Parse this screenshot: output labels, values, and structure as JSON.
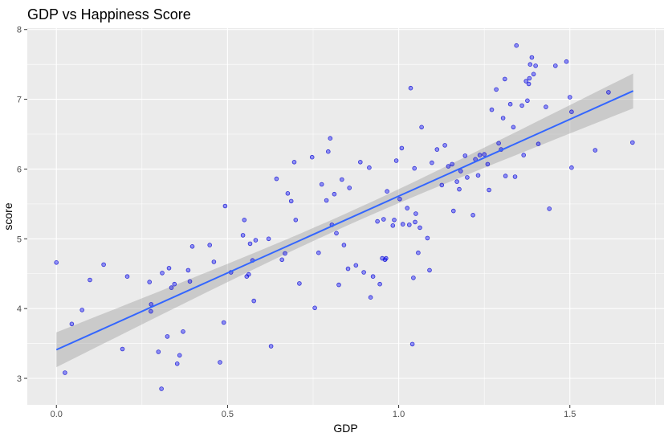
{
  "chart_data": {
    "type": "scatter",
    "title": "GDP vs Happiness Score",
    "xlabel": "GDP",
    "ylabel": "score",
    "xlim": [
      -0.085,
      1.775
    ],
    "ylim": [
      2.62,
      8.02
    ],
    "x_ticks": [
      0.0,
      0.5,
      1.0,
      1.5
    ],
    "x_tick_labels": [
      "0.0",
      "0.5",
      "1.0",
      "1.5"
    ],
    "y_ticks": [
      3,
      4,
      5,
      6,
      7,
      8
    ],
    "y_tick_labels": [
      "3",
      "4",
      "5",
      "6",
      "7",
      "8"
    ],
    "grid": true,
    "legend": "none",
    "background": "#ebebeb",
    "grid_color": "#ffffff",
    "point_color": "#0000ff",
    "point_edge_color": "#0000cc",
    "point_alpha": 0.4,
    "series": [
      {
        "points": [
          [
            0.0,
            4.66
          ],
          [
            0.025,
            3.08
          ],
          [
            0.045,
            3.78
          ],
          [
            0.075,
            3.98
          ],
          [
            0.098,
            4.41
          ],
          [
            0.138,
            4.63
          ],
          [
            0.193,
            3.42
          ],
          [
            0.207,
            4.46
          ],
          [
            0.272,
            4.38
          ],
          [
            0.276,
            3.96
          ],
          [
            0.277,
            4.06
          ],
          [
            0.298,
            3.38
          ],
          [
            0.307,
            2.85
          ],
          [
            0.309,
            4.51
          ],
          [
            0.324,
            3.6
          ],
          [
            0.329,
            4.58
          ],
          [
            0.336,
            4.3
          ],
          [
            0.345,
            4.35
          ],
          [
            0.353,
            3.21
          ],
          [
            0.36,
            3.33
          ],
          [
            0.37,
            3.67
          ],
          [
            0.385,
            4.55
          ],
          [
            0.39,
            4.39
          ],
          [
            0.397,
            4.89
          ],
          [
            0.448,
            4.91
          ],
          [
            0.46,
            4.67
          ],
          [
            0.478,
            3.23
          ],
          [
            0.489,
            3.8
          ],
          [
            0.493,
            5.47
          ],
          [
            0.51,
            4.52
          ],
          [
            0.545,
            5.05
          ],
          [
            0.549,
            5.27
          ],
          [
            0.556,
            4.46
          ],
          [
            0.562,
            4.49
          ],
          [
            0.566,
            4.93
          ],
          [
            0.573,
            4.69
          ],
          [
            0.577,
            4.11
          ],
          [
            0.582,
            4.98
          ],
          [
            0.62,
            5.0
          ],
          [
            0.627,
            3.46
          ],
          [
            0.643,
            5.86
          ],
          [
            0.659,
            4.7
          ],
          [
            0.668,
            4.79
          ],
          [
            0.676,
            5.65
          ],
          [
            0.686,
            5.54
          ],
          [
            0.695,
            6.1
          ],
          [
            0.699,
            5.27
          ],
          [
            0.71,
            4.36
          ],
          [
            0.747,
            6.17
          ],
          [
            0.755,
            4.01
          ],
          [
            0.766,
            4.8
          ],
          [
            0.775,
            5.78
          ],
          [
            0.789,
            5.55
          ],
          [
            0.794,
            6.25
          ],
          [
            0.8,
            6.44
          ],
          [
            0.805,
            5.2
          ],
          [
            0.812,
            5.64
          ],
          [
            0.818,
            5.08
          ],
          [
            0.825,
            4.34
          ],
          [
            0.834,
            5.85
          ],
          [
            0.84,
            4.91
          ],
          [
            0.852,
            4.57
          ],
          [
            0.856,
            5.73
          ],
          [
            0.875,
            4.62
          ],
          [
            0.888,
            6.1
          ],
          [
            0.898,
            4.52
          ],
          [
            0.914,
            6.02
          ],
          [
            0.918,
            4.16
          ],
          [
            0.925,
            4.46
          ],
          [
            0.938,
            5.25
          ],
          [
            0.945,
            4.35
          ],
          [
            0.952,
            4.72
          ],
          [
            0.956,
            5.28
          ],
          [
            0.96,
            4.7
          ],
          [
            0.963,
            4.72
          ],
          [
            0.966,
            5.68
          ],
          [
            0.983,
            5.19
          ],
          [
            0.987,
            5.27
          ],
          [
            0.993,
            6.12
          ],
          [
            1.003,
            5.57
          ],
          [
            1.009,
            6.3
          ],
          [
            1.012,
            5.21
          ],
          [
            1.025,
            5.44
          ],
          [
            1.031,
            5.2
          ],
          [
            1.035,
            7.16
          ],
          [
            1.04,
            3.49
          ],
          [
            1.043,
            4.44
          ],
          [
            1.046,
            6.01
          ],
          [
            1.048,
            5.24
          ],
          [
            1.05,
            5.36
          ],
          [
            1.057,
            4.8
          ],
          [
            1.062,
            5.16
          ],
          [
            1.067,
            6.6
          ],
          [
            1.084,
            5.01
          ],
          [
            1.09,
            4.55
          ],
          [
            1.097,
            6.09
          ],
          [
            1.112,
            6.28
          ],
          [
            1.126,
            5.77
          ],
          [
            1.135,
            6.34
          ],
          [
            1.145,
            6.04
          ],
          [
            1.156,
            6.07
          ],
          [
            1.16,
            5.4
          ],
          [
            1.17,
            5.82
          ],
          [
            1.177,
            5.71
          ],
          [
            1.181,
            5.97
          ],
          [
            1.194,
            6.19
          ],
          [
            1.2,
            5.88
          ],
          [
            1.217,
            5.34
          ],
          [
            1.224,
            6.14
          ],
          [
            1.232,
            5.91
          ],
          [
            1.237,
            6.2
          ],
          [
            1.25,
            6.21
          ],
          [
            1.26,
            6.07
          ],
          [
            1.264,
            5.7
          ],
          [
            1.272,
            6.85
          ],
          [
            1.285,
            7.14
          ],
          [
            1.292,
            6.37
          ],
          [
            1.299,
            6.28
          ],
          [
            1.305,
            6.73
          ],
          [
            1.31,
            7.29
          ],
          [
            1.312,
            5.9
          ],
          [
            1.326,
            6.93
          ],
          [
            1.335,
            6.6
          ],
          [
            1.34,
            5.89
          ],
          [
            1.344,
            7.77
          ],
          [
            1.36,
            6.91
          ],
          [
            1.365,
            6.2
          ],
          [
            1.372,
            7.26
          ],
          [
            1.376,
            6.98
          ],
          [
            1.38,
            7.22
          ],
          [
            1.382,
            7.3
          ],
          [
            1.384,
            7.5
          ],
          [
            1.389,
            7.6
          ],
          [
            1.394,
            7.36
          ],
          [
            1.4,
            7.48
          ],
          [
            1.408,
            6.36
          ],
          [
            1.43,
            6.89
          ],
          [
            1.44,
            5.43
          ],
          [
            1.458,
            7.48
          ],
          [
            1.49,
            7.54
          ],
          [
            1.5,
            7.03
          ],
          [
            1.505,
            6.82
          ],
          [
            1.505,
            6.02
          ],
          [
            1.574,
            6.27
          ],
          [
            1.613,
            7.1
          ],
          [
            1.683,
            6.38
          ]
        ]
      }
    ],
    "regression": {
      "method": "lm",
      "x": [
        0.0,
        1.685
      ],
      "y": [
        3.41,
        7.12
      ],
      "ci_width_ends": 0.25,
      "ci_width_center": 0.09,
      "line_color": "#3366ff",
      "band_color": "#999999"
    }
  }
}
